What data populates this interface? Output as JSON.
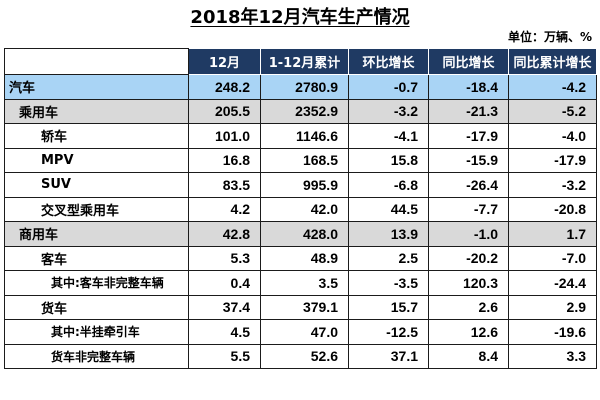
{
  "title": "2018年12月汽车生产情况",
  "unit": "单位：万辆、%",
  "columns": [
    "",
    "12月",
    "1-12月累计",
    "环比增长",
    "同比增长",
    "同比累计增长"
  ],
  "rows": [
    {
      "name": "汽车",
      "level": 0,
      "values": [
        "248.2",
        "2780.9",
        "-0.7",
        "-18.4",
        "-4.2"
      ]
    },
    {
      "name": "乘用车",
      "level": 1,
      "values": [
        "205.5",
        "2352.9",
        "-3.2",
        "-21.3",
        "-5.2"
      ]
    },
    {
      "name": "轿车",
      "level": 2,
      "values": [
        "101.0",
        "1146.6",
        "-4.1",
        "-17.9",
        "-4.0"
      ]
    },
    {
      "name": "MPV",
      "level": 2,
      "values": [
        "16.8",
        "168.5",
        "15.8",
        "-15.9",
        "-17.9"
      ]
    },
    {
      "name": "SUV",
      "level": 2,
      "values": [
        "83.5",
        "995.9",
        "-6.8",
        "-26.4",
        "-3.2"
      ]
    },
    {
      "name": "交叉型乘用车",
      "level": 2,
      "values": [
        "4.2",
        "42.0",
        "44.5",
        "-7.7",
        "-20.8"
      ]
    },
    {
      "name": "商用车",
      "level": 1,
      "values": [
        "42.8",
        "428.0",
        "13.9",
        "-1.0",
        "1.7"
      ]
    },
    {
      "name": "客车",
      "level": 2,
      "values": [
        "5.3",
        "48.9",
        "2.5",
        "-20.2",
        "-7.0"
      ]
    },
    {
      "name": "其中:客车非完整车辆",
      "level": 3,
      "values": [
        "0.4",
        "3.5",
        "-3.5",
        "120.3",
        "-24.4"
      ]
    },
    {
      "name": "货车",
      "level": 2,
      "values": [
        "37.4",
        "379.1",
        "15.7",
        "2.6",
        "2.9"
      ]
    },
    {
      "name": "其中:半挂牵引车",
      "level": 3,
      "values": [
        "4.5",
        "47.0",
        "-12.5",
        "12.6",
        "-19.6"
      ]
    },
    {
      "name": "货车非完整车辆",
      "level": 3,
      "values": [
        "5.5",
        "52.6",
        "37.1",
        "8.4",
        "3.3"
      ]
    }
  ],
  "colors": {
    "header": "#1f3a63",
    "total_row": "#a9d4f5",
    "category_row": "#d9d9d9"
  }
}
